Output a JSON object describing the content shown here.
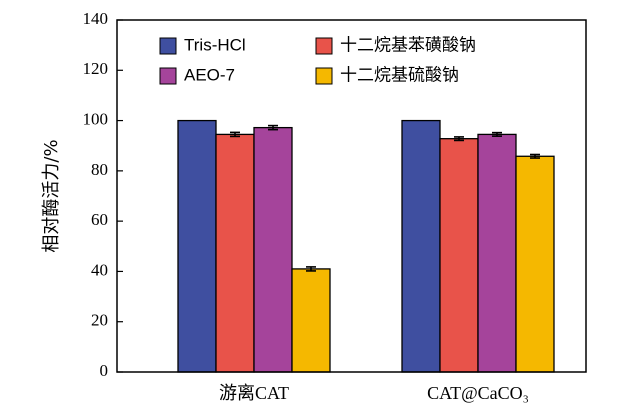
{
  "chart_data": {
    "type": "bar",
    "categories": [
      "游离CAT",
      "CAT@CaCO₃"
    ],
    "series": [
      {
        "name": "Tris-HCl",
        "color": "#3f4fa0",
        "values": [
          100,
          100
        ],
        "errors": [
          0,
          0
        ]
      },
      {
        "name": "十二烷基苯磺酸钠",
        "color": "#e8534a",
        "values": [
          94.5,
          92.8
        ],
        "errors": [
          0.8,
          0.7
        ]
      },
      {
        "name": "AEO-7",
        "color": "#a5449b",
        "values": [
          97.2,
          94.5
        ],
        "errors": [
          0.8,
          0.7
        ]
      },
      {
        "name": "十二烷基硫酸钠",
        "color": "#f5b800",
        "values": [
          41,
          85.8
        ],
        "errors": [
          0.8,
          0.7
        ]
      }
    ],
    "ylabel": "相对酶活力/%",
    "ylim": [
      0,
      140
    ],
    "yticks": [
      0,
      20,
      40,
      60,
      80,
      100,
      120,
      140
    ],
    "grid": false,
    "legend_position": "top"
  }
}
